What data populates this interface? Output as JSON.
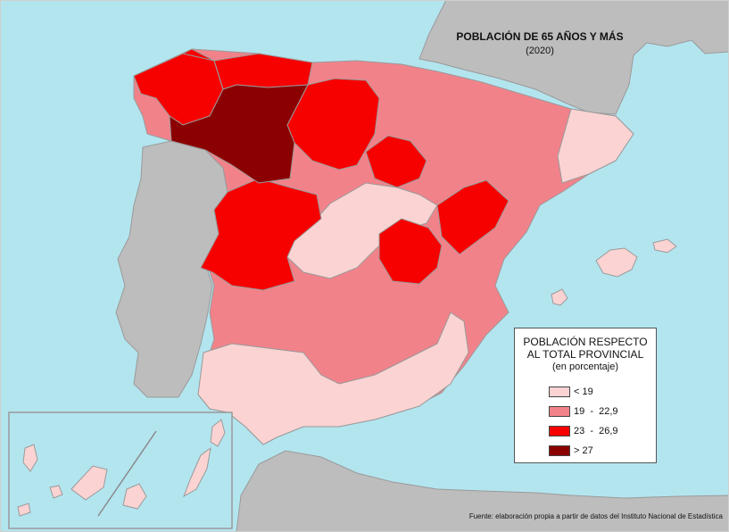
{
  "map": {
    "title": "POBLACIÓN DE 65 AÑOS Y MÁS",
    "subtitle": "(2020)",
    "source": "Fuente: elaboración propia a partir de datos del Instituto Nacional de Estadística"
  },
  "legend": {
    "title_line1": "POBLACIÓN RESPECTO",
    "title_line2": "AL TOTAL PROVINCIAL",
    "subtitle": "(en porcentaje)",
    "classes": [
      {
        "label": "< 19",
        "color": "#fbd3d3"
      },
      {
        "label": "19  -  22,9",
        "color": "#f2828a"
      },
      {
        "label": "23  -  26,9",
        "color": "#f60000"
      },
      {
        "label": "> 27",
        "color": "#8b0000"
      }
    ]
  },
  "colors": {
    "sea": "#b3e5ef",
    "land_other": "#bdbdbd",
    "border": "#8a8a8a"
  }
}
